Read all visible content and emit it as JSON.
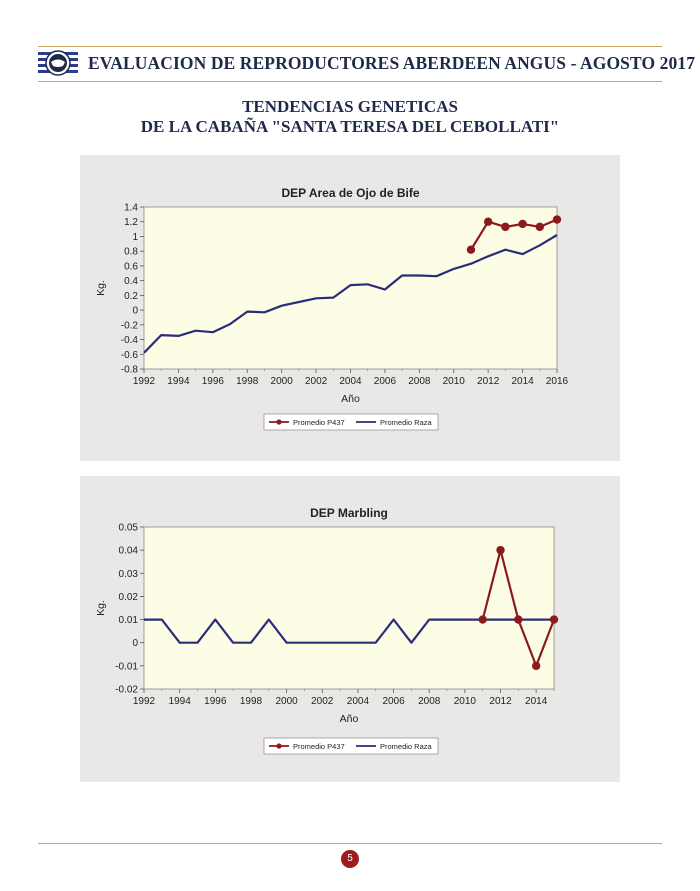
{
  "header": {
    "title": "EVALUACION DE REPRODUCTORES ABERDEEN ANGUS - AGOSTO 2017"
  },
  "section": {
    "title_line1": "TENDENCIAS GENETICAS",
    "title_line2": "DE LA CABAÑA \"SANTA TERESA DEL CEBOLLATI\""
  },
  "footer": {
    "page_number": "5"
  },
  "colors": {
    "p437": "#8b1a1a",
    "raza": "#2b2d7a",
    "plot_bg": "#fdfde6",
    "panel_bg": "#e9e8e6"
  },
  "chart_data": [
    {
      "type": "line",
      "title": "DEP Area de Ojo de Bife",
      "xlabel": "Año",
      "ylabel": "Kg.",
      "xlim": [
        1992,
        2016
      ],
      "ylim": [
        -0.8,
        1.4
      ],
      "x_ticks": [
        "1992",
        "1994",
        "1996",
        "1998",
        "2000",
        "2002",
        "2004",
        "2006",
        "2008",
        "2010",
        "2012",
        "2014",
        "2016"
      ],
      "y_ticks": [
        "-0.8",
        "-0.6",
        "-0.4",
        "-0.2",
        "0",
        "0.2",
        "0.4",
        "0.6",
        "0.8",
        "1",
        "1.2",
        "1.4"
      ],
      "series": [
        {
          "name": "Promedio P437",
          "x": [
            2011,
            2012,
            2013,
            2014,
            2015,
            2016
          ],
          "values": [
            0.82,
            1.2,
            1.13,
            1.17,
            1.13,
            1.23
          ]
        },
        {
          "name": "Promedio Raza",
          "x": [
            1992,
            1993,
            1994,
            1995,
            1996,
            1997,
            1998,
            1999,
            2000,
            2001,
            2002,
            2003,
            2004,
            2005,
            2006,
            2007,
            2008,
            2009,
            2010,
            2011,
            2012,
            2013,
            2014,
            2015,
            2016
          ],
          "values": [
            -0.58,
            -0.34,
            -0.35,
            -0.28,
            -0.3,
            -0.19,
            -0.02,
            -0.03,
            0.06,
            0.11,
            0.16,
            0.17,
            0.34,
            0.35,
            0.28,
            0.47,
            0.47,
            0.46,
            0.56,
            0.63,
            0.73,
            0.82,
            0.76,
            0.88,
            1.02
          ]
        }
      ],
      "legend": "bottom",
      "grid": false
    },
    {
      "type": "line",
      "title": "DEP Marbling",
      "xlabel": "Año",
      "ylabel": "Kg.",
      "xlim": [
        1992,
        2015
      ],
      "ylim": [
        -0.02,
        0.05
      ],
      "x_ticks": [
        "1992",
        "1994",
        "1996",
        "1998",
        "2000",
        "2002",
        "2004",
        "2006",
        "2008",
        "2010",
        "2012",
        "2014"
      ],
      "y_ticks": [
        "-0.02",
        "-0.01",
        "0",
        "0.01",
        "0.02",
        "0.03",
        "0.04",
        "0.05"
      ],
      "series": [
        {
          "name": "Promedio P437",
          "x": [
            2011,
            2012,
            2013,
            2014,
            2015
          ],
          "values": [
            0.01,
            0.04,
            0.01,
            -0.01,
            0.01
          ]
        },
        {
          "name": "Promedio Raza",
          "x": [
            1992,
            1993,
            1994,
            1995,
            1996,
            1997,
            1998,
            1999,
            2000,
            2001,
            2002,
            2003,
            2004,
            2005,
            2006,
            2007,
            2008,
            2009,
            2010,
            2011,
            2012,
            2013,
            2014,
            2015
          ],
          "values": [
            0.01,
            0.01,
            0,
            0,
            0.01,
            0,
            0,
            0.01,
            0,
            0,
            0,
            0,
            0,
            0,
            0.01,
            0,
            0.01,
            0.01,
            0.01,
            0.01,
            0.01,
            0.01,
            0.01,
            0.01
          ]
        }
      ],
      "legend": "bottom",
      "grid": false
    }
  ]
}
